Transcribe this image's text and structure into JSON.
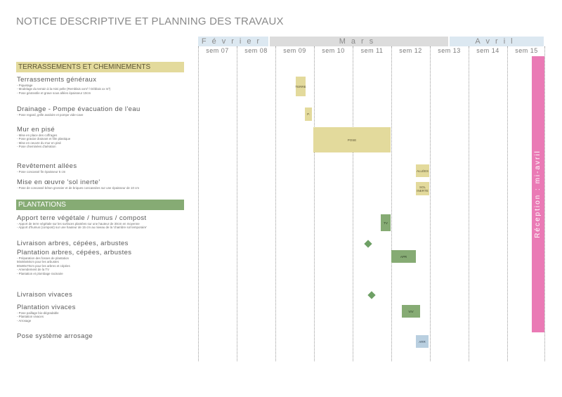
{
  "title": "NOTICE DESCRIPTIVE ET PLANNING DES TRAVAUX",
  "months": {
    "fev": "Février",
    "mars": "Mars",
    "avril": "Avril"
  },
  "weeks": [
    "sem 07",
    "sem 08",
    "sem 09",
    "sem 10",
    "sem 11",
    "sem 12",
    "sem 13",
    "sem 14",
    "sem 15"
  ],
  "sections": {
    "terrassements": "TERRASSEMENTS ET CHEMINEMENTS",
    "plantations": "PLANTATIONS"
  },
  "tasks": {
    "terrassements_generaux": {
      "title": "Terrassements généraux",
      "notes": [
        "- Piquetage",
        "- Modelage du terrain à la mini pelle (Remblais xxm³ / Déblais xx m³)",
        "- Pose géotextile et grave sous allées épaisseur 10cm"
      ]
    },
    "drainage": {
      "title": "Drainage - Pompe évacuation de l'eau",
      "notes": [
        "- Pose regard, grille avaloire et pompe vide-cave"
      ]
    },
    "mur": {
      "title": "Mur en pisé",
      "notes": [
        "- Mise en place des coffrages",
        "- Pose graviar drainant et film plastique",
        "- Mise en oeuvre du mur en pisé",
        "- Pose cheminées d'aération"
      ]
    },
    "revetement": {
      "title": "Revêtement allées",
      "notes": [
        "- Pose concassé fin épaisseur 5 cm"
      ]
    },
    "sol_inerte": {
      "title": "Mise en œuvre 'sol inerte'",
      "notes": [
        "- Pose de concassé béton grossier et de briques concassées sur une épaisseur de 10 cm"
      ]
    },
    "apport_terre": {
      "title": "Apport terre végétale / humus / compost",
      "notes": [
        "- Apport de terre végétale sur les surfaces plantées sur une hauteur de 30cm en moyenne",
        "- Apport d'humus (compost) sur une hauteur de 15 cm au niveau de la 'chambre sol temporaire'"
      ]
    },
    "livraison_arbres": {
      "title": "Livraison arbres, cépées, arbustes",
      "notes": []
    },
    "plantation_arbres": {
      "title": "Plantation arbres, cépées, arbustes",
      "notes": [
        "- Préparation des fosses de plantation",
        "50x50x50cm pour les arbustes",
        "80x80x70cm pour les arbres et cépées",
        "- Amendement de la TV",
        "- Plantation et plombage racinaire"
      ]
    },
    "livraison_vivaces": {
      "title": "Livraison vivaces",
      "notes": []
    },
    "plantation_vivaces": {
      "title": "Plantation vivaces",
      "notes": [
        "- Pose paillage bio-dégradable",
        "- Plantation vivaces",
        "- Arrosage"
      ]
    },
    "arrosage": {
      "title": "Pose système arrosage",
      "notes": []
    }
  },
  "bars": {
    "terre": "TERRE",
    "drainage": "P.",
    "pose": "POSE",
    "allees": "ALLÉES",
    "sol_inerte": "SOL INERTE",
    "tv": "TV",
    "apr": "APR",
    "viv": "VIV",
    "arr": "ARR"
  },
  "reception": "Réception : mi-avril",
  "colors": {
    "yellow": "#e3da9c",
    "green": "#86ab74",
    "blue": "#b9cfe0",
    "pink": "#ea7ab5",
    "month_blue": "#dce8f1",
    "month_grey": "#dcdcdc"
  }
}
